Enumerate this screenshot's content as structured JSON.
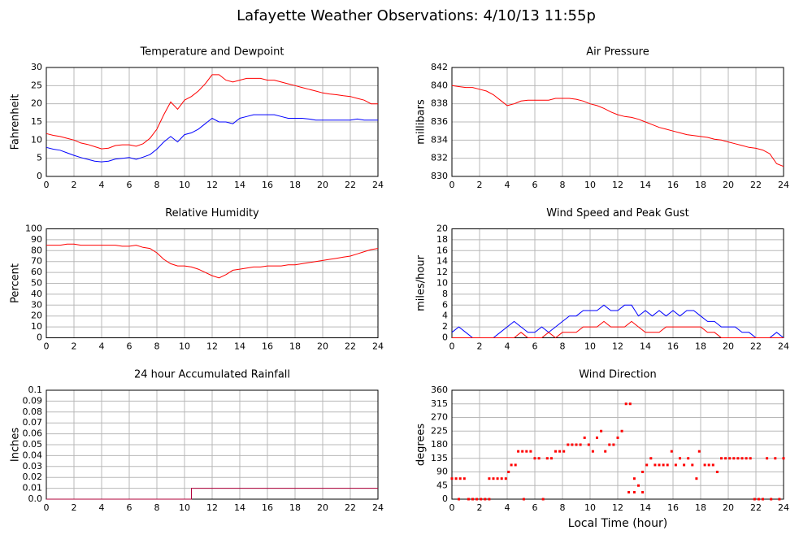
{
  "title": "Lafayette Weather Observations: 4/10/13 11:55p",
  "chart_data": [
    {
      "type": "line",
      "title": "Temperature and Dewpoint",
      "ylabel": "Fahrenheit",
      "xlim": [
        0,
        24
      ],
      "xticks": [
        0,
        2,
        4,
        6,
        8,
        10,
        12,
        14,
        16,
        18,
        20,
        22,
        24
      ],
      "ylim": [
        0,
        30
      ],
      "yticks": [
        0,
        5,
        10,
        15,
        20,
        25,
        30
      ],
      "grid": true,
      "x": [
        0,
        0.5,
        1,
        1.5,
        2,
        2.5,
        3,
        3.5,
        4,
        4.5,
        5,
        5.5,
        6,
        6.5,
        7,
        7.5,
        8,
        8.5,
        9,
        9.5,
        10,
        10.5,
        11,
        11.5,
        12,
        12.5,
        13,
        13.5,
        14,
        14.5,
        15,
        15.5,
        16,
        16.5,
        17,
        17.5,
        18,
        18.5,
        19,
        19.5,
        20,
        20.5,
        21,
        21.5,
        22,
        22.5,
        23,
        23.5,
        24
      ],
      "series": [
        {
          "color": "#ff0000",
          "values": [
            11.8,
            11.3,
            11,
            10.5,
            10,
            9.2,
            8.8,
            8.2,
            7.6,
            7.8,
            8.5,
            8.7,
            8.7,
            8.3,
            9,
            10.5,
            13,
            17,
            20.5,
            18.5,
            21,
            22,
            23.5,
            25.5,
            28,
            28,
            26.5,
            26,
            26.5,
            27,
            27,
            27,
            26.5,
            26.5,
            26,
            25.5,
            25,
            24.5,
            24,
            23.5,
            23,
            22.7,
            22.5,
            22.2,
            22,
            21.5,
            21,
            20,
            20
          ]
        },
        {
          "color": "#0000ff",
          "values": [
            8,
            7.5,
            7.2,
            6.5,
            5.8,
            5.2,
            4.7,
            4.2,
            4,
            4.2,
            4.8,
            5,
            5.2,
            4.7,
            5.3,
            6,
            7.5,
            9.5,
            11,
            9.5,
            11.5,
            12,
            13,
            14.5,
            16,
            15,
            15,
            14.5,
            16,
            16.5,
            17,
            17,
            17,
            17,
            16.5,
            16,
            16,
            16,
            15.8,
            15.5,
            15.5,
            15.5,
            15.5,
            15.5,
            15.5,
            15.8,
            15.5,
            15.5,
            15.5
          ]
        }
      ]
    },
    {
      "type": "line",
      "title": "Air Pressure",
      "ylabel": "millibars",
      "xlim": [
        0,
        24
      ],
      "xticks": [
        0,
        2,
        4,
        6,
        8,
        10,
        12,
        14,
        16,
        18,
        20,
        22,
        24
      ],
      "ylim": [
        830,
        842
      ],
      "yticks": [
        830,
        832,
        834,
        836,
        838,
        840,
        842
      ],
      "grid": true,
      "x": [
        0,
        0.5,
        1,
        1.5,
        2,
        2.5,
        3,
        3.5,
        4,
        4.5,
        5,
        5.5,
        6,
        6.5,
        7,
        7.5,
        8,
        8.5,
        9,
        9.5,
        10,
        10.5,
        11,
        11.5,
        12,
        12.5,
        13,
        13.5,
        14,
        14.5,
        15,
        15.5,
        16,
        16.5,
        17,
        17.5,
        18,
        18.5,
        19,
        19.5,
        20,
        20.5,
        21,
        21.5,
        22,
        22.5,
        23,
        23.5,
        24
      ],
      "series": [
        {
          "color": "#ff0000",
          "values": [
            840,
            839.9,
            839.8,
            839.8,
            839.6,
            839.4,
            839,
            838.4,
            837.8,
            838,
            838.3,
            838.4,
            838.4,
            838.4,
            838.4,
            838.6,
            838.6,
            838.6,
            838.5,
            838.3,
            838,
            837.8,
            837.5,
            837.1,
            836.8,
            836.6,
            836.5,
            836.3,
            836,
            835.7,
            835.4,
            835.2,
            835,
            834.8,
            834.6,
            834.5,
            834.4,
            834.3,
            834.1,
            834,
            833.8,
            833.6,
            833.4,
            833.2,
            833.1,
            832.9,
            832.5,
            831.4,
            831.1
          ]
        }
      ]
    },
    {
      "type": "line",
      "title": "Relative Humidity",
      "ylabel": "Percent",
      "xlim": [
        0,
        24
      ],
      "xticks": [
        0,
        2,
        4,
        6,
        8,
        10,
        12,
        14,
        16,
        18,
        20,
        22,
        24
      ],
      "ylim": [
        0,
        100
      ],
      "yticks": [
        0,
        10,
        20,
        30,
        40,
        50,
        60,
        70,
        80,
        90,
        100
      ],
      "grid": true,
      "x": [
        0,
        0.5,
        1,
        1.5,
        2,
        2.5,
        3,
        3.5,
        4,
        4.5,
        5,
        5.5,
        6,
        6.5,
        7,
        7.5,
        8,
        8.5,
        9,
        9.5,
        10,
        10.5,
        11,
        11.5,
        12,
        12.5,
        13,
        13.5,
        14,
        14.5,
        15,
        15.5,
        16,
        16.5,
        17,
        17.5,
        18,
        18.5,
        19,
        19.5,
        20,
        20.5,
        21,
        21.5,
        22,
        22.5,
        23,
        23.5,
        24
      ],
      "series": [
        {
          "color": "#ff0000",
          "values": [
            85,
            85,
            85,
            86,
            86,
            85,
            85,
            85,
            85,
            85,
            85,
            84,
            84,
            85,
            83,
            82,
            78,
            72,
            68,
            66,
            66,
            65,
            63,
            60,
            57,
            55,
            58,
            62,
            63,
            64,
            65,
            65,
            66,
            66,
            66,
            67,
            67,
            68,
            69,
            70,
            71,
            72,
            73,
            74,
            75,
            77,
            79,
            81,
            82
          ]
        }
      ]
    },
    {
      "type": "line",
      "title": "Wind Speed and Peak Gust",
      "ylabel": "miles/hour",
      "xlim": [
        0,
        24
      ],
      "xticks": [
        0,
        2,
        4,
        6,
        8,
        10,
        12,
        14,
        16,
        18,
        20,
        22,
        24
      ],
      "ylim": [
        0,
        20
      ],
      "yticks": [
        0,
        2,
        4,
        6,
        8,
        10,
        12,
        14,
        16,
        18,
        20
      ],
      "grid": true,
      "x": [
        0,
        0.5,
        1,
        1.5,
        2,
        2.5,
        3,
        3.5,
        4,
        4.5,
        5,
        5.5,
        6,
        6.5,
        7,
        7.5,
        8,
        8.5,
        9,
        9.5,
        10,
        10.5,
        11,
        11.5,
        12,
        12.5,
        13,
        13.5,
        14,
        14.5,
        15,
        15.5,
        16,
        16.5,
        17,
        17.5,
        18,
        18.5,
        19,
        19.5,
        20,
        20.5,
        21,
        21.5,
        22,
        22.5,
        23,
        23.5,
        24
      ],
      "series": [
        {
          "color": "#0000ff",
          "values": [
            1,
            2,
            1,
            0,
            0,
            0,
            0,
            1,
            2,
            3,
            2,
            1,
            1,
            2,
            1,
            2,
            3,
            4,
            4,
            5,
            5,
            5,
            6,
            5,
            5,
            6,
            6,
            4,
            5,
            4,
            5,
            4,
            5,
            4,
            5,
            5,
            4,
            3,
            3,
            2,
            2,
            2,
            1,
            1,
            0,
            0,
            0,
            1,
            0
          ]
        },
        {
          "color": "#ff0000",
          "values": [
            0,
            0,
            0,
            0,
            0,
            0,
            0,
            0,
            0,
            0,
            1,
            0,
            0,
            0,
            1,
            0,
            1,
            1,
            1,
            2,
            2,
            2,
            3,
            2,
            2,
            2,
            3,
            2,
            1,
            1,
            1,
            2,
            2,
            2,
            2,
            2,
            2,
            1,
            1,
            0,
            0,
            0,
            0,
            0,
            0,
            0,
            0,
            0,
            0
          ]
        }
      ]
    },
    {
      "type": "line",
      "title": "24 hour Accumulated Rainfall",
      "ylabel": "Inches",
      "xlim": [
        0,
        24
      ],
      "xticks": [
        0,
        2,
        4,
        6,
        8,
        10,
        12,
        14,
        16,
        18,
        20,
        22,
        24
      ],
      "ylim": [
        0,
        0.1
      ],
      "yticks": [
        {
          "value": 0,
          "label": "0.0"
        },
        0.01,
        0.02,
        0.03,
        0.04,
        0.05,
        0.06,
        0.07,
        0.08,
        0.09,
        0.1
      ],
      "grid": true,
      "x": [
        0,
        10.5,
        10.5,
        24
      ],
      "series": [
        {
          "color": "#b0003a",
          "values": [
            0,
            0,
            0.01,
            0.01
          ]
        }
      ]
    },
    {
      "type": "scatter",
      "title": "Wind Direction",
      "ylabel": "degrees",
      "xlabel": "Local Time (hour)",
      "xlim": [
        0,
        24
      ],
      "xticks": [
        0,
        2,
        4,
        6,
        8,
        10,
        12,
        14,
        16,
        18,
        20,
        22,
        24
      ],
      "ylim": [
        0,
        360
      ],
      "yticks": [
        0,
        45,
        90,
        135,
        180,
        225,
        270,
        315,
        360
      ],
      "grid": true,
      "color": "#ff0000",
      "x": [
        0,
        0.3,
        0.6,
        0.9,
        0.5,
        1.2,
        1.5,
        1.8,
        2.1,
        2.4,
        2.7,
        2.7,
        3,
        3.3,
        3.6,
        3.9,
        4.1,
        4.3,
        4.6,
        4.8,
        5.1,
        5.4,
        5.2,
        5.7,
        6,
        6.3,
        6.6,
        6.9,
        7.2,
        7.5,
        7.8,
        8.1,
        8.4,
        8.7,
        9,
        9.3,
        9.6,
        9.9,
        10.2,
        10.5,
        10.8,
        11.1,
        11.4,
        11.7,
        12,
        12.3,
        12.6,
        12.9,
        12.8,
        13.2,
        13.2,
        13.5,
        13.8,
        13.8,
        14.1,
        14.4,
        14.7,
        15,
        15.3,
        15.6,
        15.9,
        16.2,
        16.5,
        16.8,
        17.1,
        17.4,
        17.7,
        17.9,
        18.3,
        18.6,
        18.9,
        19.2,
        19.5,
        19.8,
        20.1,
        20.4,
        20.7,
        21,
        21.3,
        21.6,
        21.9,
        22.2,
        22.5,
        22.8,
        23.1,
        23.4,
        23.7,
        24
      ],
      "values": [
        68,
        68,
        68,
        68,
        0,
        0,
        0,
        0,
        0,
        0,
        0,
        68,
        68,
        68,
        68,
        68,
        90,
        113,
        113,
        158,
        158,
        158,
        0,
        158,
        135,
        135,
        0,
        135,
        135,
        158,
        158,
        158,
        180,
        180,
        180,
        180,
        203,
        180,
        158,
        203,
        225,
        158,
        180,
        180,
        203,
        225,
        315,
        315,
        23,
        23,
        68,
        45,
        90,
        23,
        113,
        135,
        113,
        113,
        113,
        113,
        158,
        113,
        135,
        113,
        135,
        113,
        68,
        158,
        113,
        113,
        113,
        90,
        135,
        135,
        135,
        135,
        135,
        135,
        135,
        135,
        0,
        0,
        0,
        135,
        0,
        135,
        0,
        135
      ]
    }
  ]
}
